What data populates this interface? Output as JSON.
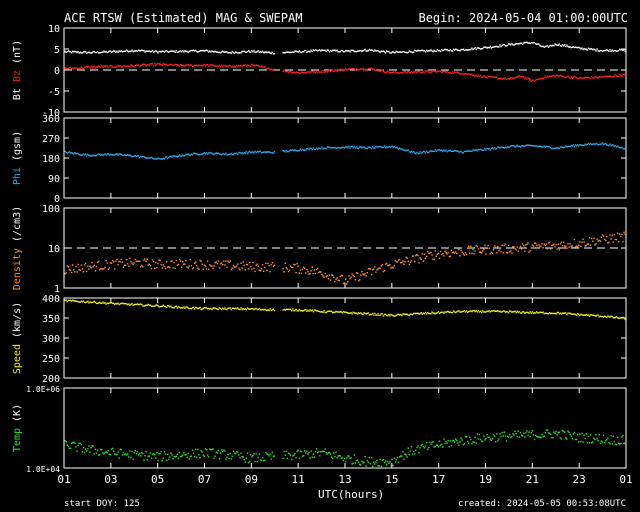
{
  "header": {
    "title": "ACE RTSW (Estimated) MAG & SWEPAM",
    "begin": "Begin: 2024-05-04 01:00:00UTC"
  },
  "footer": {
    "start_doy": "start DOY: 125",
    "created": "created: 2024-05-05 00:53:08UTC"
  },
  "chart_data": {
    "type": "scatter",
    "x_axis": {
      "label": "UTC(hours)",
      "ticks": [
        "01",
        "03",
        "05",
        "07",
        "09",
        "11",
        "13",
        "15",
        "17",
        "19",
        "21",
        "23",
        "01"
      ],
      "range_hours": [
        1,
        25
      ]
    },
    "gaps_hours": [
      [
        10.0,
        10.3
      ]
    ],
    "panels": [
      {
        "id": "mag",
        "ylabel_parts": [
          {
            "text": "Bt",
            "color": "#ffffff"
          },
          {
            "text": " Bz",
            "color": "#ff2020"
          },
          {
            "text": " (nT)",
            "color": "#ffffff"
          }
        ],
        "ylim": [
          -10,
          10
        ],
        "yticks": [
          "-10",
          "-5",
          "0",
          "5",
          "10"
        ],
        "dashed_zero": 0,
        "series": [
          {
            "name": "Bt",
            "color": "#ffffff",
            "hours": [
              1,
              2,
              3,
              4,
              5,
              6,
              7,
              8,
              9,
              10,
              11,
              12,
              13,
              14,
              15,
              16,
              17,
              18,
              19,
              20,
              20.5,
              21,
              21.5,
              22,
              23,
              24,
              25
            ],
            "values": [
              4.5,
              4.3,
              4.5,
              4.8,
              4.5,
              4.6,
              4.7,
              4.3,
              4.6,
              4.2,
              4.5,
              4.8,
              4.6,
              4.9,
              4.3,
              4.6,
              4.8,
              5.0,
              5.5,
              6.2,
              6.5,
              6.7,
              5.5,
              6.3,
              5.3,
              4.8,
              4.9
            ]
          },
          {
            "name": "Bz",
            "color": "#ff2020",
            "hours": [
              1,
              2,
              3,
              4,
              5,
              6,
              7,
              8,
              9,
              10,
              11,
              12,
              13,
              14,
              15,
              16,
              17,
              18,
              19,
              20,
              20.5,
              21,
              21.5,
              22,
              23,
              24,
              25
            ],
            "values": [
              0.5,
              0.8,
              1.0,
              1.2,
              1.5,
              1.2,
              1.3,
              1.0,
              1.3,
              0.2,
              -0.5,
              -0.2,
              0.3,
              0.5,
              -0.5,
              -0.3,
              -0.2,
              -0.6,
              -1.5,
              -2.0,
              -1.3,
              -2.5,
              -1.5,
              -1.2,
              -1.8,
              -1.5,
              -1.0
            ]
          }
        ]
      },
      {
        "id": "phi",
        "ylabel_parts": [
          {
            "text": "Phi",
            "color": "#30a8e8"
          },
          {
            "text": " (gsm)",
            "color": "#ffffff"
          }
        ],
        "ylim": [
          0,
          360
        ],
        "yticks": [
          "0",
          "90",
          "180",
          "270",
          "360"
        ],
        "series": [
          {
            "name": "Phi",
            "color": "#30a8e8",
            "hours": [
              1,
              2,
              3,
              4,
              5,
              6,
              7,
              8,
              9,
              10,
              11,
              12,
              13,
              14,
              15,
              16,
              17,
              18,
              19,
              20,
              21,
              22,
              23,
              24,
              25
            ],
            "values": [
              210,
              195,
              200,
              192,
              178,
              195,
              205,
              200,
              210,
              208,
              220,
              228,
              232,
              228,
              235,
              205,
              218,
              210,
              222,
              235,
              238,
              228,
              242,
              248,
              225
            ]
          }
        ]
      },
      {
        "id": "density",
        "ylabel_parts": [
          {
            "text": "Density",
            "color": "#ff9030"
          },
          {
            "text": " (/cm3)",
            "color": "#ffffff"
          }
        ],
        "ylim": [
          1,
          100
        ],
        "log": true,
        "yticks": [
          "1",
          "10",
          "100"
        ],
        "dashed_value": 10,
        "series": [
          {
            "name": "Density",
            "color": "#ff9030",
            "hours": [
              1,
              2,
              3,
              4,
              5,
              6,
              7,
              8,
              9,
              10,
              11,
              12,
              13,
              14,
              15,
              16,
              17,
              18,
              19,
              20,
              21,
              22,
              23,
              24,
              25
            ],
            "values": [
              3.0,
              3.5,
              4.0,
              4.5,
              4.0,
              4.2,
              4.0,
              3.8,
              3.5,
              3.5,
              3.2,
              2.5,
              1.5,
              2.5,
              4.0,
              5.5,
              7.5,
              8.5,
              9.5,
              10,
              11,
              12,
              14,
              17,
              20
            ]
          }
        ]
      },
      {
        "id": "speed",
        "ylabel_parts": [
          {
            "text": "Speed",
            "color": "#f0f020"
          },
          {
            "text": " (km/s)",
            "color": "#ffffff"
          }
        ],
        "ylim": [
          200,
          400
        ],
        "yticks": [
          "200",
          "250",
          "300",
          "350",
          "400"
        ],
        "series": [
          {
            "name": "Speed",
            "color": "#f0f020",
            "hours": [
              1,
              2,
              3,
              4,
              5,
              6,
              7,
              8,
              9,
              10,
              11,
              12,
              13,
              14,
              15,
              16,
              17,
              18,
              19,
              20,
              21,
              22,
              23,
              24,
              25
            ],
            "values": [
              395,
              392,
              388,
              385,
              382,
              378,
              375,
              375,
              374,
              372,
              372,
              368,
              365,
              362,
              358,
              362,
              365,
              368,
              368,
              367,
              365,
              364,
              360,
              356,
              350
            ]
          }
        ]
      },
      {
        "id": "temp",
        "ylabel_parts": [
          {
            "text": "Temp",
            "color": "#30e030"
          },
          {
            "text": " (K)",
            "color": "#ffffff"
          }
        ],
        "ylim": [
          10000,
          1000000
        ],
        "log": true,
        "yticks": [
          "1.0E+04",
          "1.0E+06"
        ],
        "series": [
          {
            "name": "Temp",
            "color": "#30e030",
            "hours": [
              1,
              2,
              3,
              4,
              5,
              6,
              7,
              8,
              9,
              10,
              11,
              12,
              13,
              14,
              15,
              16,
              17,
              18,
              19,
              20,
              21,
              22,
              23,
              24,
              25
            ],
            "values": [
              40000,
              30000,
              25000,
              22000,
              20000,
              22000,
              25000,
              22000,
              18000,
              20000,
              22000,
              25000,
              18000,
              15000,
              15000,
              30000,
              40000,
              50000,
              60000,
              65000,
              70000,
              75000,
              60000,
              55000,
              50000
            ]
          }
        ]
      }
    ]
  }
}
